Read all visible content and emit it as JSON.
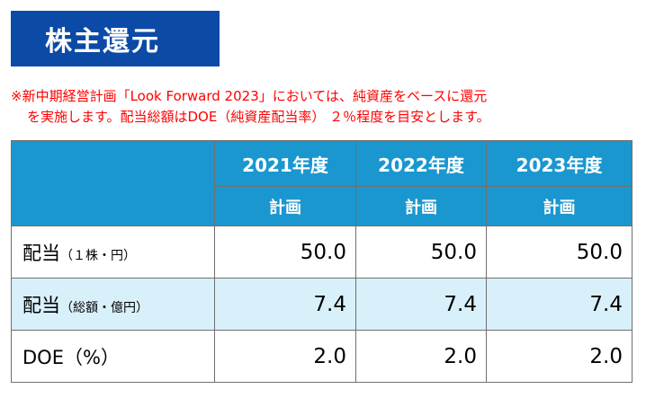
{
  "title": "株主還元",
  "note": {
    "line1": "※新中期経営計画「Look Forward 2023」においては、純資産をベースに還元",
    "line2": "を実施します。配当総額はDOE（純資産配当率） ２％程度を目安とします。"
  },
  "table": {
    "headers": [
      "2021年度",
      "2022年度",
      "2023年度"
    ],
    "subheaders": [
      "計画",
      "計画",
      "計画"
    ],
    "rows": [
      {
        "label": "配当",
        "sublabel": "（１株・円）",
        "values": [
          "50.0",
          "50.0",
          "50.0"
        ]
      },
      {
        "label": "配当",
        "sublabel": "（総額・億円）",
        "values": [
          "7.4",
          "7.4",
          "7.4"
        ]
      },
      {
        "label": "DOE（%）",
        "sublabel": "",
        "values": [
          "2.0",
          "2.0",
          "2.0"
        ]
      }
    ]
  },
  "colors": {
    "title_bg": "#0b4aa6",
    "header_bg": "#1b97cf",
    "row_highlight": "#d8f0fa",
    "note_text": "#ff0000"
  }
}
